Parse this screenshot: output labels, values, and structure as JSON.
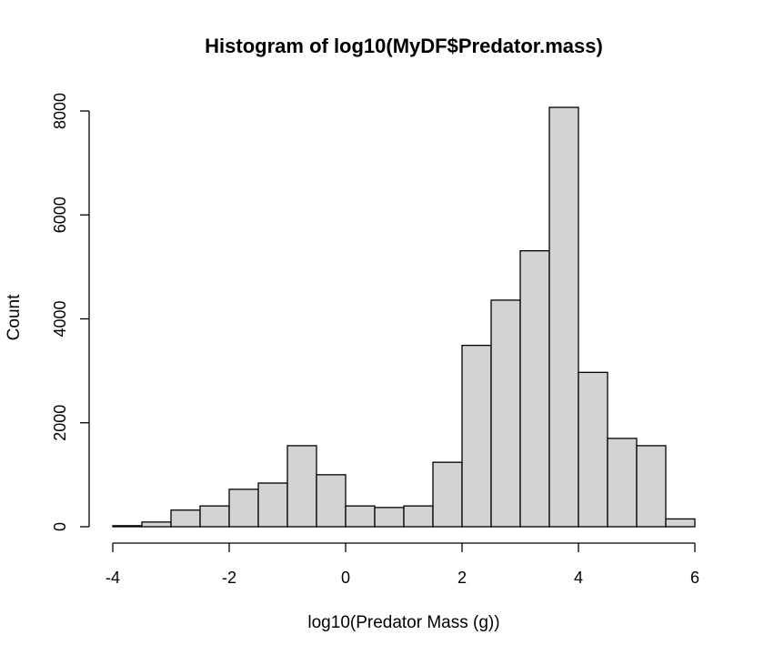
{
  "chart_data": {
    "type": "bar",
    "title": "Histogram of log10(MyDF$Predator.mass)",
    "xlabel": "log10(Predator Mass (g))",
    "ylabel": "Count",
    "xlim": [
      -4,
      6
    ],
    "ylim": [
      0,
      8000
    ],
    "x_ticks": [
      -4,
      -2,
      0,
      2,
      4,
      6
    ],
    "y_ticks": [
      0,
      2000,
      4000,
      6000,
      8000
    ],
    "grid": false,
    "colors": {
      "bar_fill": "#d3d3d3",
      "bar_stroke": "#000000",
      "axis": "#000000",
      "background": "#ffffff"
    },
    "bins": [
      {
        "x0": -4.0,
        "x1": -3.5,
        "count": 20
      },
      {
        "x0": -3.5,
        "x1": -3.0,
        "count": 90
      },
      {
        "x0": -3.0,
        "x1": -2.5,
        "count": 320
      },
      {
        "x0": -2.5,
        "x1": -2.0,
        "count": 400
      },
      {
        "x0": -2.0,
        "x1": -1.5,
        "count": 720
      },
      {
        "x0": -1.5,
        "x1": -1.0,
        "count": 840
      },
      {
        "x0": -1.0,
        "x1": -0.5,
        "count": 1560
      },
      {
        "x0": -0.5,
        "x1": 0.0,
        "count": 1000
      },
      {
        "x0": 0.0,
        "x1": 0.5,
        "count": 400
      },
      {
        "x0": 0.5,
        "x1": 1.0,
        "count": 370
      },
      {
        "x0": 1.0,
        "x1": 1.5,
        "count": 400
      },
      {
        "x0": 1.5,
        "x1": 2.0,
        "count": 1240
      },
      {
        "x0": 2.0,
        "x1": 2.5,
        "count": 3490
      },
      {
        "x0": 2.5,
        "x1": 3.0,
        "count": 4360
      },
      {
        "x0": 3.0,
        "x1": 3.5,
        "count": 5310
      },
      {
        "x0": 3.5,
        "x1": 4.0,
        "count": 8070
      },
      {
        "x0": 4.0,
        "x1": 4.5,
        "count": 2970
      },
      {
        "x0": 4.5,
        "x1": 5.0,
        "count": 1700
      },
      {
        "x0": 5.0,
        "x1": 5.5,
        "count": 1560
      },
      {
        "x0": 5.5,
        "x1": 6.0,
        "count": 150
      }
    ]
  }
}
